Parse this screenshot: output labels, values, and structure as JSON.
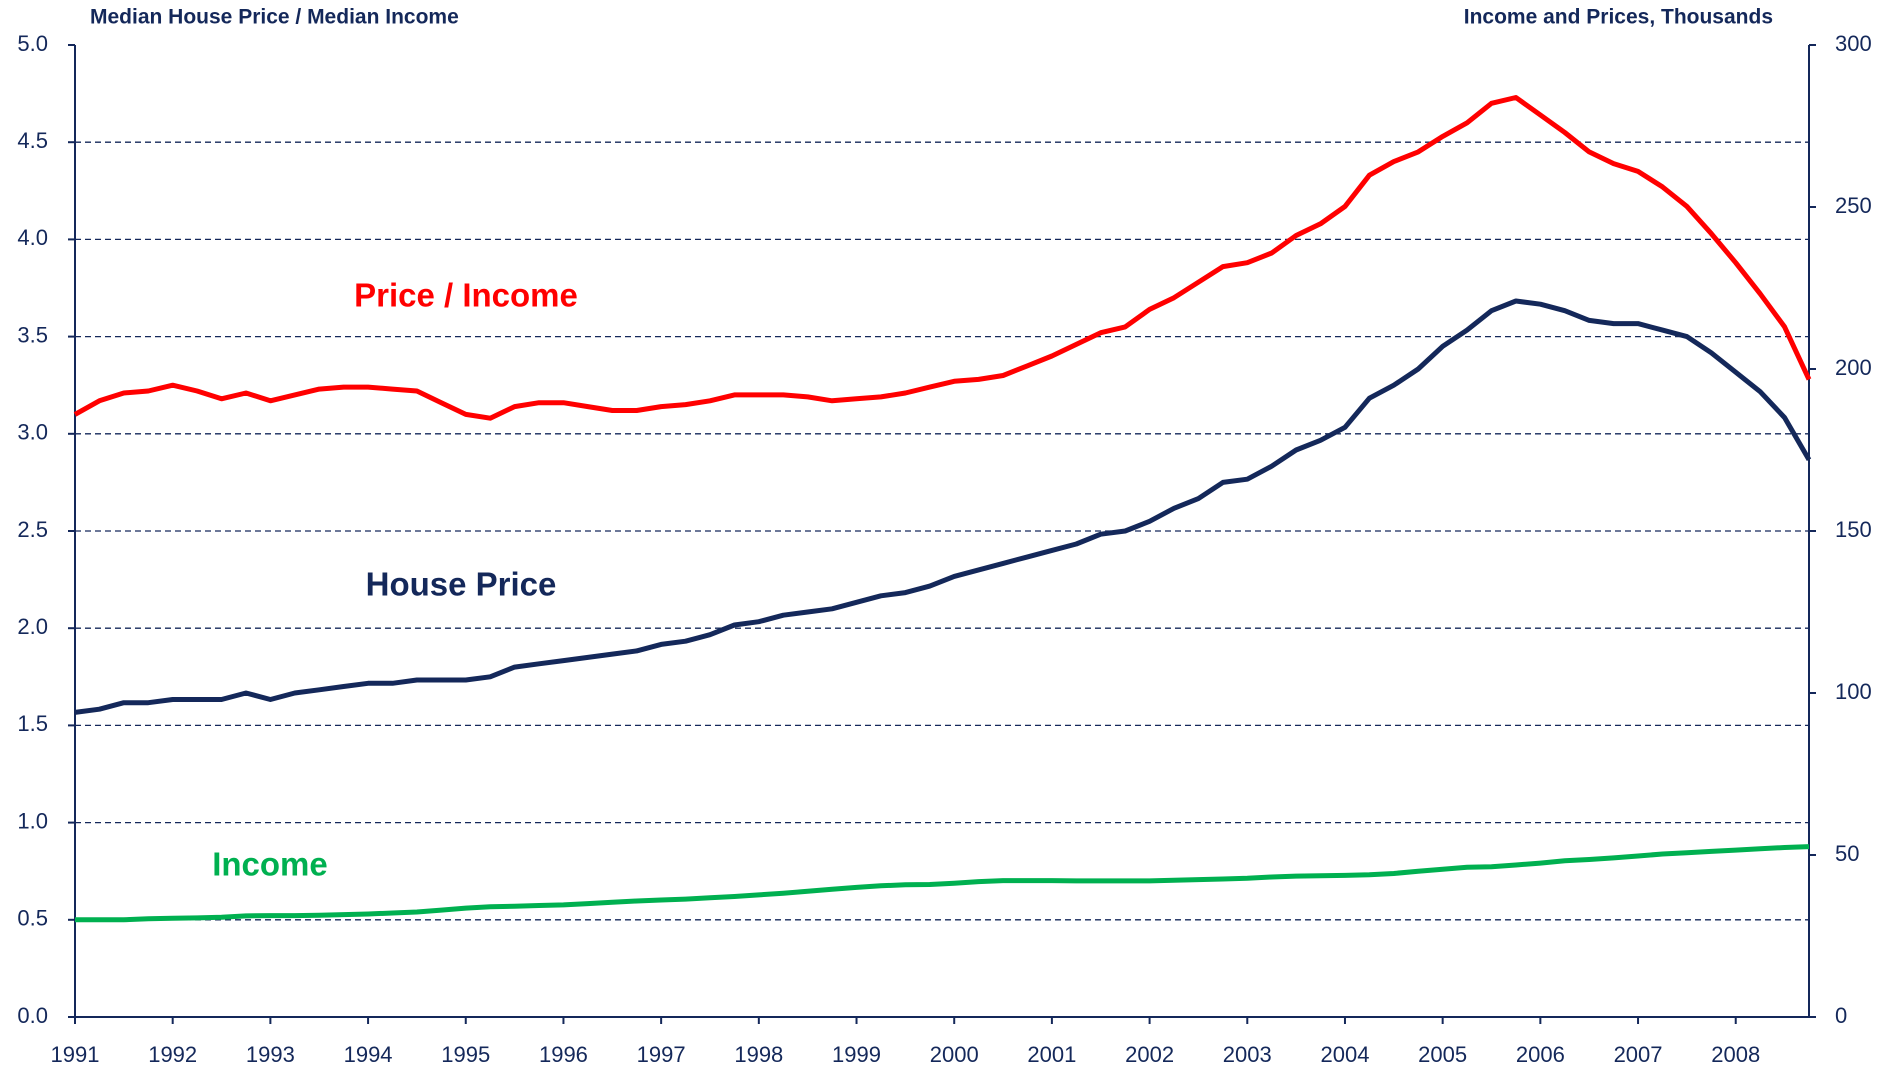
{
  "chart_data": {
    "type": "line",
    "y_title": "Median House Price / Median Income",
    "y2_title": "Income and Prices, Thousands",
    "x": [
      1991,
      1991.25,
      1991.5,
      1991.75,
      1992,
      1992.25,
      1992.5,
      1992.75,
      1993,
      1993.25,
      1993.5,
      1993.75,
      1994,
      1994.25,
      1994.5,
      1994.75,
      1995,
      1995.25,
      1995.5,
      1995.75,
      1996,
      1996.25,
      1996.5,
      1996.75,
      1997,
      1997.25,
      1997.5,
      1997.75,
      1998,
      1998.25,
      1998.5,
      1998.75,
      1999,
      1999.25,
      1999.5,
      1999.75,
      2000,
      2000.25,
      2000.5,
      2000.75,
      2001,
      2001.25,
      2001.5,
      2001.75,
      2002,
      2002.25,
      2002.5,
      2002.75,
      2003,
      2003.25,
      2003.5,
      2003.75,
      2004,
      2004.25,
      2004.5,
      2004.75,
      2005,
      2005.25,
      2005.5,
      2005.75,
      2006,
      2006.25,
      2006.5,
      2006.75,
      2007,
      2007.25,
      2007.5,
      2007.75,
      2008,
      2008.25,
      2008.5,
      2008.75
    ],
    "xlim": [
      1991,
      2008.75
    ],
    "xticks": [
      1991,
      1992,
      1993,
      1994,
      1995,
      1996,
      1997,
      1998,
      1999,
      2000,
      2001,
      2002,
      2003,
      2004,
      2005,
      2006,
      2007,
      2008
    ],
    "ylim": [
      0,
      5
    ],
    "yticks": [
      {
        "value": 0,
        "label": "0.0"
      },
      0.5,
      {
        "value": 1,
        "label": "1.0"
      },
      1.5,
      {
        "value": 2,
        "label": "2.0"
      },
      2.5,
      {
        "value": 3,
        "label": "3.0"
      },
      3.5,
      {
        "value": 4,
        "label": "4.0"
      },
      4.5,
      {
        "value": 5,
        "label": "5.0"
      }
    ],
    "y2lim": [
      0,
      300
    ],
    "y2ticks": [
      0,
      50,
      100,
      150,
      200,
      250,
      300
    ],
    "grid": true,
    "series": [
      {
        "name": "Price / Income",
        "color": "#ff0000",
        "values": [
          3.1,
          3.17,
          3.21,
          3.22,
          3.25,
          3.22,
          3.18,
          3.21,
          3.17,
          3.2,
          3.23,
          3.24,
          3.24,
          3.23,
          3.22,
          3.16,
          3.1,
          3.08,
          3.14,
          3.16,
          3.16,
          3.14,
          3.12,
          3.12,
          3.14,
          3.15,
          3.17,
          3.2,
          3.2,
          3.2,
          3.19,
          3.17,
          3.18,
          3.19,
          3.21,
          3.24,
          3.27,
          3.28,
          3.3,
          3.35,
          3.4,
          3.46,
          3.52,
          3.55,
          3.64,
          3.7,
          3.78,
          3.86,
          3.88,
          3.93,
          4.02,
          4.08,
          4.17,
          4.33,
          4.4,
          4.45,
          4.53,
          4.6,
          4.7,
          4.73,
          4.64,
          4.55,
          4.45,
          4.39,
          4.35,
          4.27,
          4.17,
          4.03,
          3.88,
          3.72,
          3.55,
          3.28
        ]
      },
      {
        "name": "House Price",
        "color": "#14285a",
        "axis": "y2",
        "values": [
          94,
          95,
          97,
          97,
          98,
          98,
          98,
          100,
          98,
          100,
          101,
          102,
          103,
          103,
          104,
          104,
          104,
          105,
          108,
          109,
          110,
          111,
          112,
          113,
          115,
          116,
          118,
          121,
          122,
          124,
          125,
          126,
          128,
          130,
          131,
          133,
          136,
          138,
          140,
          142,
          144,
          146,
          149,
          150,
          153,
          157,
          160,
          165,
          166,
          170,
          175,
          178,
          182,
          191,
          195,
          200,
          207,
          212,
          218,
          221,
          220,
          218,
          215,
          214,
          214,
          212,
          210,
          205,
          199,
          193,
          185,
          172
        ]
      },
      {
        "name": "Income",
        "color": "#00b050",
        "axis": "y2",
        "values": [
          30,
          30,
          30,
          30.3,
          30.5,
          30.6,
          30.8,
          31.2,
          31.3,
          31.3,
          31.4,
          31.6,
          31.8,
          32.1,
          32.4,
          33.0,
          33.6,
          34.0,
          34.2,
          34.4,
          34.6,
          35.0,
          35.4,
          35.8,
          36.1,
          36.4,
          36.8,
          37.2,
          37.7,
          38.2,
          38.8,
          39.4,
          40.0,
          40.5,
          40.8,
          40.9,
          41.3,
          41.8,
          42.1,
          42.1,
          42.1,
          42.0,
          42.0,
          42.0,
          42.0,
          42.2,
          42.4,
          42.6,
          42.8,
          43.2,
          43.5,
          43.6,
          43.7,
          43.9,
          44.3,
          45.0,
          45.6,
          46.2,
          46.4,
          46.9,
          47.5,
          48.2,
          48.6,
          49.1,
          49.7,
          50.3,
          50.7,
          51.1,
          51.5,
          51.9,
          52.3,
          52.6
        ]
      }
    ]
  }
}
